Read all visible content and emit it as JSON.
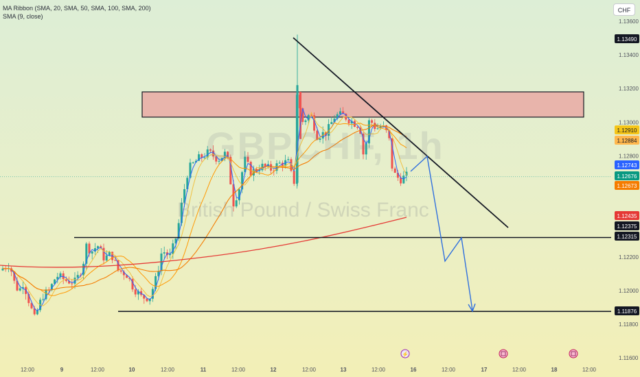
{
  "legend": {
    "line1": "MA Ribbon (SMA, 20, SMA, 50, SMA, 100, SMA, 200)",
    "line2": "SMA (9, close)"
  },
  "currency_button": "CHF",
  "watermark": {
    "symbol": "GBPCHF, 1h",
    "name": "British Pound / Swiss Franc"
  },
  "colors": {
    "bull": "#26a69a",
    "bear": "#ef5350",
    "sma9": "#2962ff",
    "sma20": "#f0c040",
    "sma50": "#ff9800",
    "sma100": "#f57c00",
    "sma200": "#e53935",
    "zone": "#e9a9a4"
  },
  "chart_data": {
    "type": "candlestick",
    "price_ticks": [
      "1.13600",
      "1.13400",
      "1.13200",
      "1.13000",
      "1.12800",
      "1.12200",
      "1.12000",
      "1.11800",
      "1.11600"
    ],
    "price_range": [
      1.1155,
      1.1365
    ],
    "time_ticks": [
      "12:00",
      "9",
      "12:00",
      "10",
      "12:00",
      "11",
      "12:00",
      "12",
      "12:00",
      "13",
      "12:00",
      "16",
      "12:00",
      "17",
      "12:00",
      "18",
      "12:00"
    ],
    "price_labels": [
      {
        "text": "1.13490",
        "bg": "#131722",
        "fg": "#ffffff"
      },
      {
        "text": "1.12910",
        "bg": "#f5c518",
        "fg": "#131722"
      },
      {
        "text": "1.12884",
        "bg": "#ffb74d",
        "fg": "#131722"
      },
      {
        "text": "1.12743",
        "bg": "#2962ff",
        "fg": "#ffffff"
      },
      {
        "text": "1.12676",
        "bg": "#089981",
        "fg": "#ffffff"
      },
      {
        "text": "1.12673",
        "bg": "#f57c00",
        "fg": "#ffffff"
      },
      {
        "text": "1.12435",
        "bg": "#e53935",
        "fg": "#ffffff"
      },
      {
        "text": "1.12375",
        "bg": "#131722",
        "fg": "#ffffff"
      },
      {
        "text": "1.12315",
        "bg": "#131722",
        "fg": "#ffffff"
      },
      {
        "text": "1.11876",
        "bg": "#131722",
        "fg": "#ffffff"
      }
    ],
    "resistance_zone": [
      1.1303,
      1.1318
    ],
    "support_levels": [
      1.12315,
      1.11876
    ],
    "current_price": 1.12676
  }
}
